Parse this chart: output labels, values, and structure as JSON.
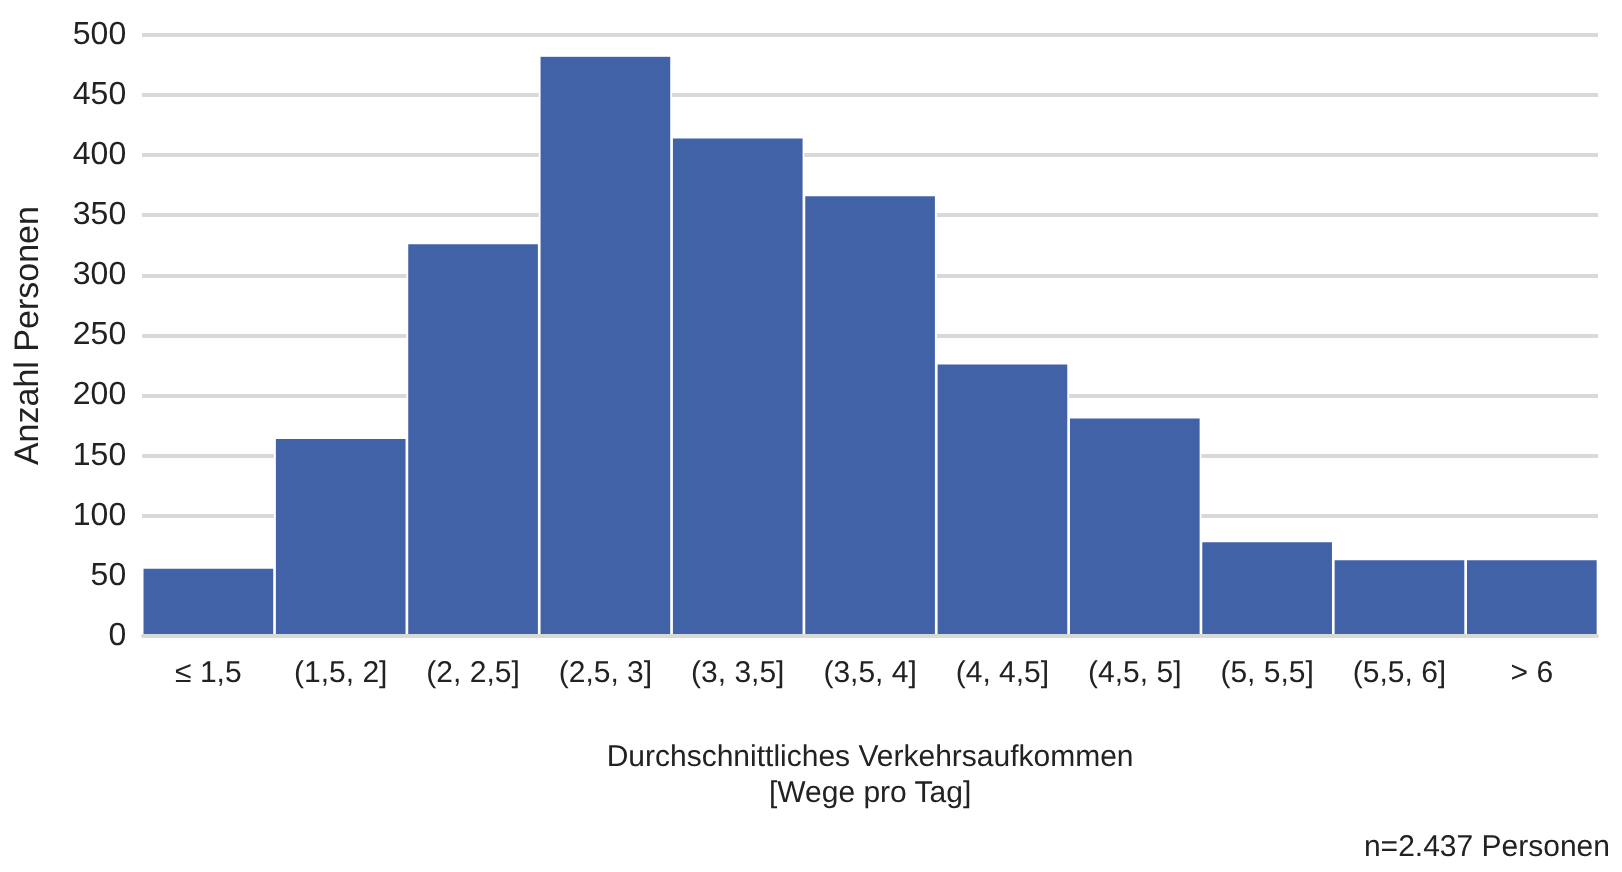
{
  "chart_data": {
    "type": "bar",
    "xlabel": "Durchschnittliches Verkehrsaufkommen\n[Wege pro Tag]",
    "ylabel": "Anzahl Personen",
    "categories": [
      "≤ 1,5",
      "(1,5, 2]",
      "(2, 2,5]",
      "(2,5, 3]",
      "(3, 3,5]",
      "(3,5, 4]",
      "(4, 4,5]",
      "(4,5, 5]",
      "(5, 5,5]",
      "(5,5, 6]",
      "> 6"
    ],
    "values": [
      56,
      164,
      326,
      482,
      414,
      366,
      226,
      181,
      78,
      63,
      63
    ],
    "color": "#4262a8",
    "ylim": [
      0,
      500
    ],
    "yticks": [
      0,
      50,
      100,
      150,
      200,
      250,
      300,
      350,
      400,
      450,
      500
    ],
    "grid": "y",
    "annotations": [
      "n=2.437 Personen"
    ]
  }
}
